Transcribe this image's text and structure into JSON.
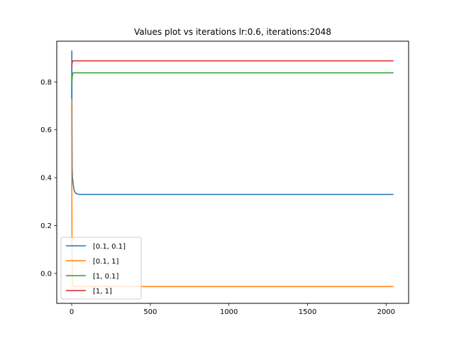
{
  "chart_data": {
    "type": "line",
    "title": "Values plot vs iterations lr:0.6, iterations:2048",
    "xlabel": "",
    "ylabel": "",
    "xlim": [
      -95,
      2143
    ],
    "ylim": [
      -0.125,
      0.97
    ],
    "xticks": [
      0,
      500,
      1000,
      1500,
      2000
    ],
    "yticks": [
      0.0,
      0.2,
      0.4,
      0.6,
      0.8
    ],
    "grid": false,
    "legend_position": "lower-left",
    "series": [
      {
        "name": "[0.1, 0.1]",
        "color": "#1f77b4",
        "points": [
          [
            0,
            0.73
          ],
          [
            1,
            0.93
          ],
          [
            2,
            0.6
          ],
          [
            3,
            0.45
          ],
          [
            5,
            0.4
          ],
          [
            10,
            0.37
          ],
          [
            15,
            0.35
          ],
          [
            20,
            0.34
          ],
          [
            30,
            0.333
          ],
          [
            40,
            0.331
          ],
          [
            60,
            0.33
          ],
          [
            100,
            0.33
          ],
          [
            500,
            0.33
          ],
          [
            1000,
            0.33
          ],
          [
            1500,
            0.33
          ],
          [
            2047,
            0.33
          ]
        ]
      },
      {
        "name": "[0.1, 1]",
        "color": "#ff7f0e",
        "points": [
          [
            0,
            0.73
          ],
          [
            1,
            0.36
          ],
          [
            2,
            0.12
          ],
          [
            3,
            0.02
          ],
          [
            4,
            -0.03
          ],
          [
            6,
            -0.05
          ],
          [
            10,
            -0.055
          ],
          [
            20,
            -0.055
          ],
          [
            100,
            -0.055
          ],
          [
            1000,
            -0.055
          ],
          [
            2047,
            -0.055
          ]
        ]
      },
      {
        "name": "[1, 0.1]",
        "color": "#2ca02c",
        "points": [
          [
            0,
            0.8
          ],
          [
            1,
            0.79
          ],
          [
            3,
            0.82
          ],
          [
            6,
            0.835
          ],
          [
            10,
            0.838
          ],
          [
            20,
            0.838
          ],
          [
            100,
            0.838
          ],
          [
            1000,
            0.838
          ],
          [
            2047,
            0.838
          ]
        ]
      },
      {
        "name": "[1, 1]",
        "color": "#d62728",
        "points": [
          [
            0,
            0.86
          ],
          [
            1,
            0.87
          ],
          [
            3,
            0.88
          ],
          [
            6,
            0.887
          ],
          [
            10,
            0.888
          ],
          [
            20,
            0.888
          ],
          [
            100,
            0.888
          ],
          [
            1000,
            0.888
          ],
          [
            2047,
            0.888
          ]
        ]
      }
    ]
  }
}
